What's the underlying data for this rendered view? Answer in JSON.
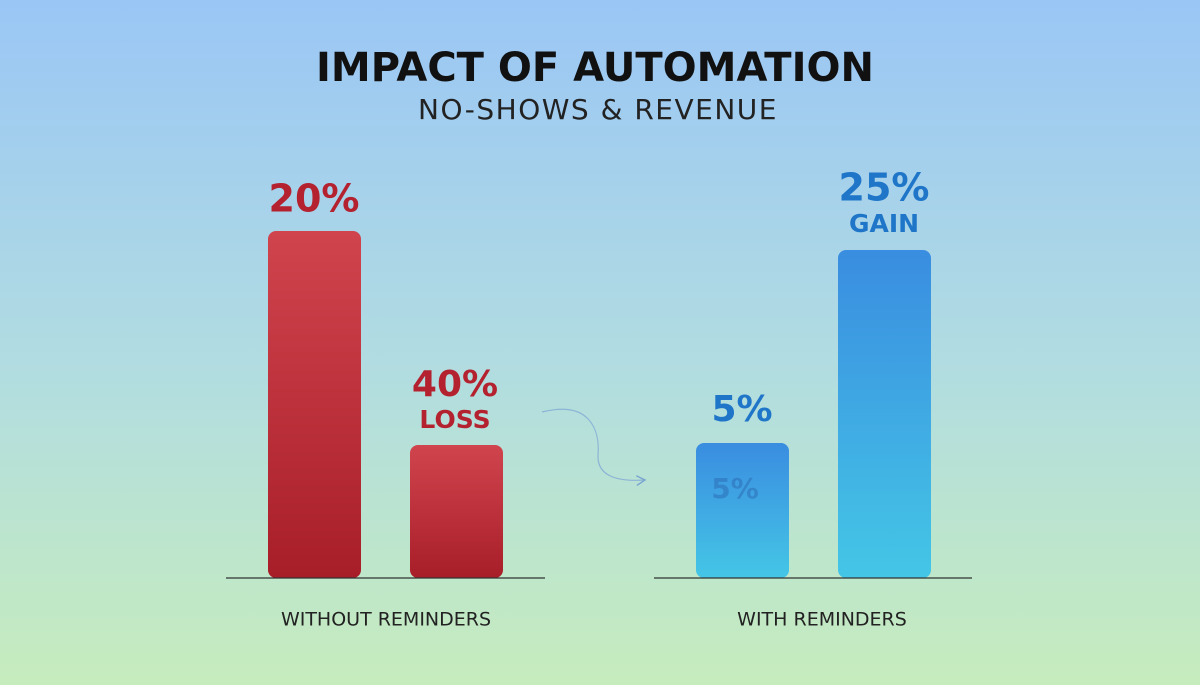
{
  "header": {
    "title": "IMPACT OF AUTOMATION",
    "subtitle": "NO-SHOWS & REVENUE"
  },
  "groups": [
    {
      "label": "WITHOUT REMINDERS",
      "bars": [
        {
          "label": "20%"
        },
        {
          "label": "40%",
          "note": "LOSS"
        }
      ]
    },
    {
      "label": "WITH REMINDERS",
      "bars": [
        {
          "label": "5%",
          "inner_label": "5%"
        },
        {
          "label": "25%",
          "note": "GAIN"
        }
      ]
    }
  ]
}
